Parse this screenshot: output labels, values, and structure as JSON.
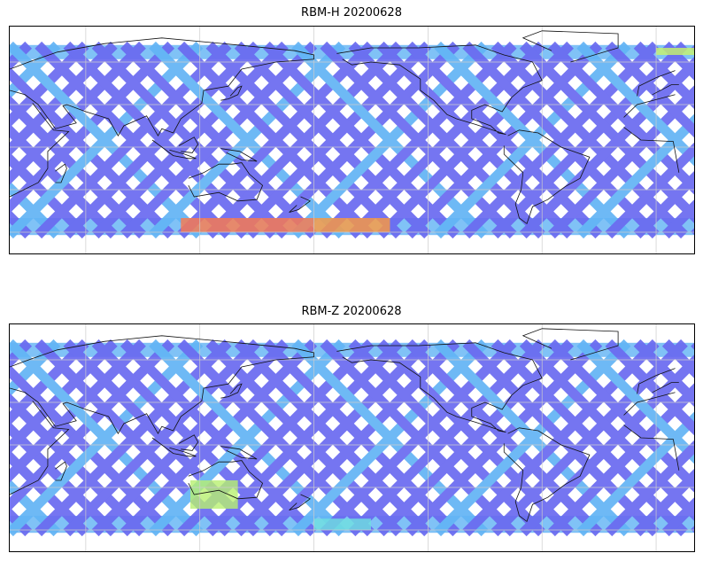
{
  "panels": [
    {
      "title": "RBM-H 20200628",
      "bands": [
        {
          "lat_from": -60,
          "lat_to": -50,
          "lon_from": -180,
          "lon_to": -140,
          "color": "#ff9a3c"
        },
        {
          "lat_from": -60,
          "lat_to": -50,
          "lon_from": 110,
          "lon_to": 180,
          "color": "#ff7a4a"
        },
        {
          "lat_from": 65,
          "lat_to": 70,
          "lon_from": 0,
          "lon_to": 40,
          "color": "#c8f56a"
        }
      ]
    },
    {
      "title": "RBM-Z 20200628",
      "bands": [
        {
          "lat_from": -45,
          "lat_to": -25,
          "lon_from": 115,
          "lon_to": 140,
          "color": "#b8f070"
        },
        {
          "lat_from": -60,
          "lat_to": -52,
          "lon_from": -180,
          "lon_to": -150,
          "color": "#6fe0e0"
        }
      ]
    }
  ],
  "colors": {
    "track_base": "#6a6af0",
    "track_light": "#62b4f5",
    "high_lat_band": "#6ab7f5",
    "coast": "#111111",
    "grid": "#cccccc"
  }
}
